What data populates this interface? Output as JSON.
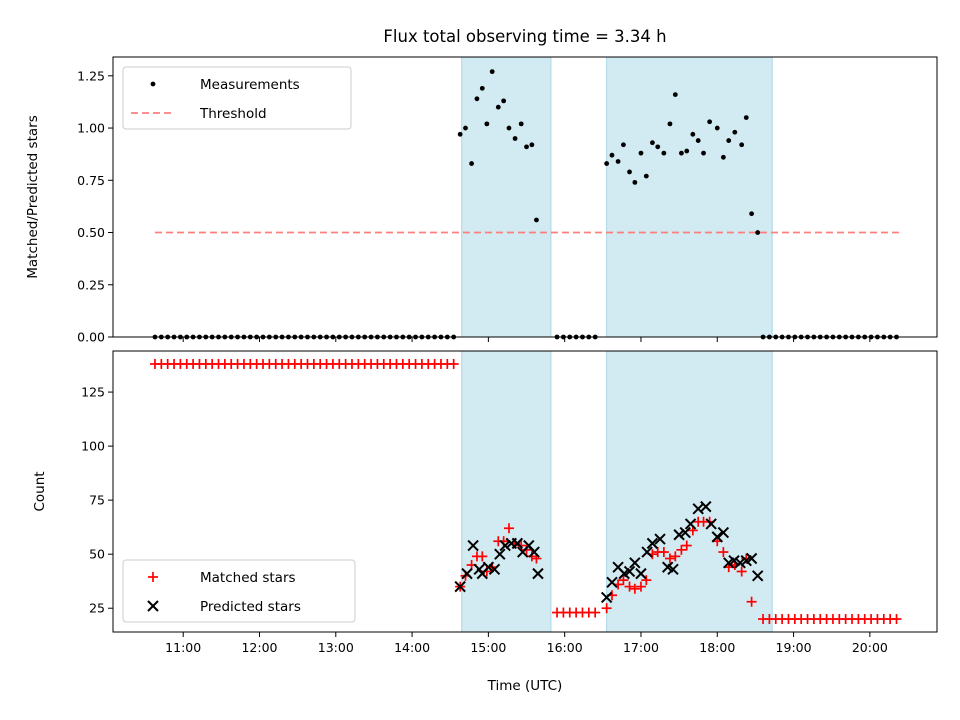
{
  "chart_data": {
    "title": "Flux total observing time = 3.34 h",
    "xlabel": "Time (UTC)",
    "x_tick_labels": [
      "11:00",
      "12:00",
      "13:00",
      "14:00",
      "15:00",
      "16:00",
      "17:00",
      "18:00",
      "19:00",
      "20:00"
    ],
    "x_tick_hours": [
      11,
      12,
      13,
      14,
      15,
      16,
      17,
      18,
      19,
      20
    ],
    "xlim_hours": [
      10.08,
      20.88
    ],
    "shaded_intervals_hours": [
      [
        14.65,
        15.82
      ],
      [
        16.55,
        18.72
      ]
    ],
    "colors": {
      "shade": "#add8e6",
      "threshold": "#ff7f7f",
      "matched": "#ff0000",
      "predicted": "#000000",
      "measurement": "#000000"
    },
    "panels": [
      {
        "type": "scatter",
        "ylabel": "Matched/Predicted stars",
        "ylim": [
          0,
          1.34
        ],
        "y_tick_values": [
          0,
          0.25,
          0.5,
          0.75,
          1.0,
          1.25
        ],
        "y_tick_labels": [
          "0.00",
          "0.25",
          "0.50",
          "0.75",
          "1.00",
          "1.25"
        ],
        "legend": {
          "position": "upper-left",
          "items": [
            "Measurements",
            "Threshold"
          ]
        },
        "threshold": {
          "name": "Threshold",
          "y": 0.5,
          "x_range_hours": [
            10.63,
            20.4
          ]
        },
        "measurements": {
          "name": "Measurements",
          "points": [
            [
              14.63,
              0.97
            ],
            [
              14.7,
              1.0
            ],
            [
              14.78,
              0.83
            ],
            [
              14.85,
              1.14
            ],
            [
              14.92,
              1.19
            ],
            [
              14.98,
              1.02
            ],
            [
              15.05,
              1.27
            ],
            [
              15.13,
              1.1
            ],
            [
              15.2,
              1.13
            ],
            [
              15.27,
              1.0
            ],
            [
              15.35,
              0.95
            ],
            [
              15.43,
              1.02
            ],
            [
              15.5,
              0.91
            ],
            [
              15.57,
              0.92
            ],
            [
              15.63,
              0.56
            ],
            [
              16.55,
              0.83
            ],
            [
              16.62,
              0.87
            ],
            [
              16.7,
              0.84
            ],
            [
              16.77,
              0.92
            ],
            [
              16.85,
              0.79
            ],
            [
              16.92,
              0.74
            ],
            [
              17.0,
              0.88
            ],
            [
              17.07,
              0.77
            ],
            [
              17.15,
              0.93
            ],
            [
              17.22,
              0.91
            ],
            [
              17.3,
              0.88
            ],
            [
              17.38,
              1.02
            ],
            [
              17.45,
              1.16
            ],
            [
              17.53,
              0.88
            ],
            [
              17.6,
              0.89
            ],
            [
              17.68,
              0.97
            ],
            [
              17.75,
              0.94
            ],
            [
              17.82,
              0.88
            ],
            [
              17.9,
              1.03
            ],
            [
              18.0,
              1.0
            ],
            [
              18.08,
              0.86
            ],
            [
              18.15,
              0.94
            ],
            [
              18.23,
              0.98
            ],
            [
              18.32,
              0.92
            ],
            [
              18.38,
              1.05
            ],
            [
              18.45,
              0.59
            ],
            [
              18.53,
              0.5
            ]
          ],
          "zero_runs_hours": [
            [
              10.63,
              14.6
            ],
            [
              15.9,
              16.45
            ],
            [
              18.6,
              20.4
            ]
          ],
          "zero_step_hours": 0.0833
        }
      },
      {
        "type": "scatter",
        "ylabel": "Count",
        "ylim": [
          14,
          144
        ],
        "y_tick_values": [
          25,
          50,
          75,
          100,
          125
        ],
        "y_tick_labels": [
          "25",
          "50",
          "75",
          "100",
          "125"
        ],
        "legend": {
          "position": "lower-left",
          "items": [
            "Matched stars",
            "Predicted stars"
          ]
        },
        "matched_constant_runs": [
          {
            "from": 10.63,
            "to": 14.6,
            "value": 138
          },
          {
            "from": 15.9,
            "to": 16.45,
            "value": 23
          },
          {
            "from": 18.6,
            "to": 20.4,
            "value": 20
          }
        ],
        "constant_step_hours": 0.0833,
        "series": [
          {
            "name": "Matched stars",
            "marker": "plus",
            "points": [
              [
                14.63,
                35
              ],
              [
                14.7,
                40
              ],
              [
                14.78,
                45
              ],
              [
                14.85,
                49
              ],
              [
                14.92,
                49
              ],
              [
                14.98,
                42
              ],
              [
                15.05,
                44
              ],
              [
                15.13,
                56
              ],
              [
                15.2,
                56
              ],
              [
                15.27,
                62
              ],
              [
                15.35,
                55
              ],
              [
                15.43,
                54
              ],
              [
                15.5,
                52
              ],
              [
                15.57,
                49
              ],
              [
                15.63,
                48
              ],
              [
                16.55,
                25
              ],
              [
                16.62,
                31
              ],
              [
                16.7,
                36
              ],
              [
                16.77,
                38
              ],
              [
                16.85,
                35
              ],
              [
                16.92,
                34
              ],
              [
                17.0,
                35
              ],
              [
                17.07,
                38
              ],
              [
                17.15,
                50
              ],
              [
                17.22,
                51
              ],
              [
                17.3,
                51
              ],
              [
                17.38,
                48
              ],
              [
                17.45,
                49
              ],
              [
                17.53,
                52
              ],
              [
                17.6,
                54
              ],
              [
                17.68,
                61
              ],
              [
                17.75,
                65
              ],
              [
                17.82,
                65
              ],
              [
                17.9,
                65
              ],
              [
                18.0,
                56
              ],
              [
                18.08,
                51
              ],
              [
                18.15,
                44
              ],
              [
                18.23,
                45
              ],
              [
                18.32,
                42
              ],
              [
                18.38,
                48
              ],
              [
                18.45,
                28
              ]
            ]
          },
          {
            "name": "Predicted stars",
            "marker": "x",
            "points": [
              [
                14.63,
                35
              ],
              [
                14.72,
                41
              ],
              [
                14.8,
                54
              ],
              [
                14.88,
                43
              ],
              [
                14.92,
                41
              ],
              [
                15.0,
                44
              ],
              [
                15.08,
                43
              ],
              [
                15.15,
                50
              ],
              [
                15.22,
                54
              ],
              [
                15.3,
                55
              ],
              [
                15.38,
                55
              ],
              [
                15.45,
                51
              ],
              [
                15.53,
                54
              ],
              [
                15.6,
                51
              ],
              [
                15.65,
                41
              ],
              [
                16.55,
                30
              ],
              [
                16.62,
                37
              ],
              [
                16.7,
                44
              ],
              [
                16.78,
                41
              ],
              [
                16.85,
                42
              ],
              [
                16.92,
                46
              ],
              [
                17.0,
                41
              ],
              [
                17.08,
                51
              ],
              [
                17.15,
                55
              ],
              [
                17.25,
                57
              ],
              [
                17.35,
                44
              ],
              [
                17.42,
                43
              ],
              [
                17.5,
                59
              ],
              [
                17.58,
                60
              ],
              [
                17.65,
                64
              ],
              [
                17.75,
                71
              ],
              [
                17.85,
                72
              ],
              [
                17.92,
                64
              ],
              [
                18.0,
                58
              ],
              [
                18.08,
                60
              ],
              [
                18.15,
                46
              ],
              [
                18.22,
                47
              ],
              [
                18.3,
                46
              ],
              [
                18.38,
                47
              ],
              [
                18.45,
                48
              ],
              [
                18.53,
                40
              ]
            ]
          }
        ]
      }
    ]
  }
}
